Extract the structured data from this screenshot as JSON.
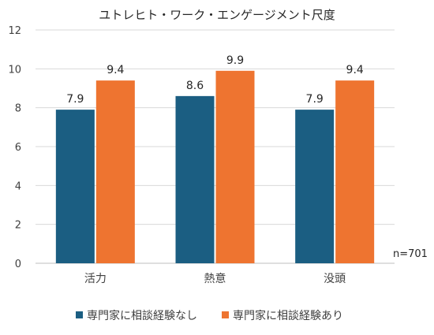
{
  "chart_data": {
    "type": "bar",
    "title": "ユトレヒト・ワーク・エンゲージメント尺度",
    "categories": [
      "活力",
      "熱意",
      "没頭"
    ],
    "series": [
      {
        "name": "専門家に相談経験なし",
        "values": [
          7.9,
          8.6,
          7.9
        ],
        "color": "#1b5e82"
      },
      {
        "name": "専門家に相談経験あり",
        "values": [
          9.4,
          9.9,
          9.4
        ],
        "color": "#ee7430"
      }
    ],
    "ylim": [
      0,
      12
    ],
    "yticks": [
      0,
      2,
      4,
      6,
      8,
      10,
      12
    ],
    "xlabel": "",
    "ylabel": "",
    "note": "n=701",
    "grid": true,
    "legend_position": "bottom"
  }
}
